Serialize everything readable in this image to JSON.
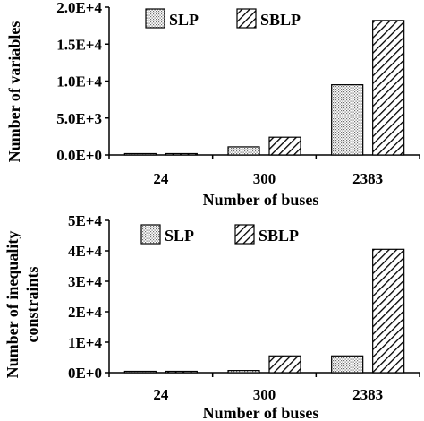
{
  "chart_data": [
    {
      "type": "bar",
      "categories": [
        "24",
        "300",
        "2383"
      ],
      "series": [
        {
          "name": "SLP",
          "values": [
            60,
            1100,
            9500
          ],
          "pattern": "dots"
        },
        {
          "name": "SBLP",
          "values": [
            150,
            2400,
            18200
          ],
          "pattern": "hatch"
        }
      ],
      "ylim": [
        0,
        20000
      ],
      "yticks": [
        0,
        5000,
        10000,
        15000,
        20000
      ],
      "ytick_labels": [
        "0.0E+0",
        "5.0E+3",
        "1.0E+4",
        "1.5E+4",
        "2.0E+4"
      ],
      "xlabel": "Number of buses",
      "ylabel": "Number of variables",
      "legend_position": "top",
      "grid": false
    },
    {
      "type": "bar",
      "categories": [
        "24",
        "300",
        "2383"
      ],
      "series": [
        {
          "name": "SLP",
          "values": [
            100,
            700,
            5500
          ],
          "pattern": "dots"
        },
        {
          "name": "SBLP",
          "values": [
            400,
            5500,
            40500
          ],
          "pattern": "hatch"
        }
      ],
      "ylim": [
        0,
        50000
      ],
      "yticks": [
        0,
        10000,
        20000,
        30000,
        40000,
        50000
      ],
      "ytick_labels": [
        "0E+0",
        "1E+4",
        "2E+4",
        "3E+4",
        "4E+4",
        "5E+4"
      ],
      "xlabel": "Number of buses",
      "ylabel": [
        "Number of inequality",
        "constraints"
      ],
      "legend_position": "top",
      "grid": false
    }
  ]
}
